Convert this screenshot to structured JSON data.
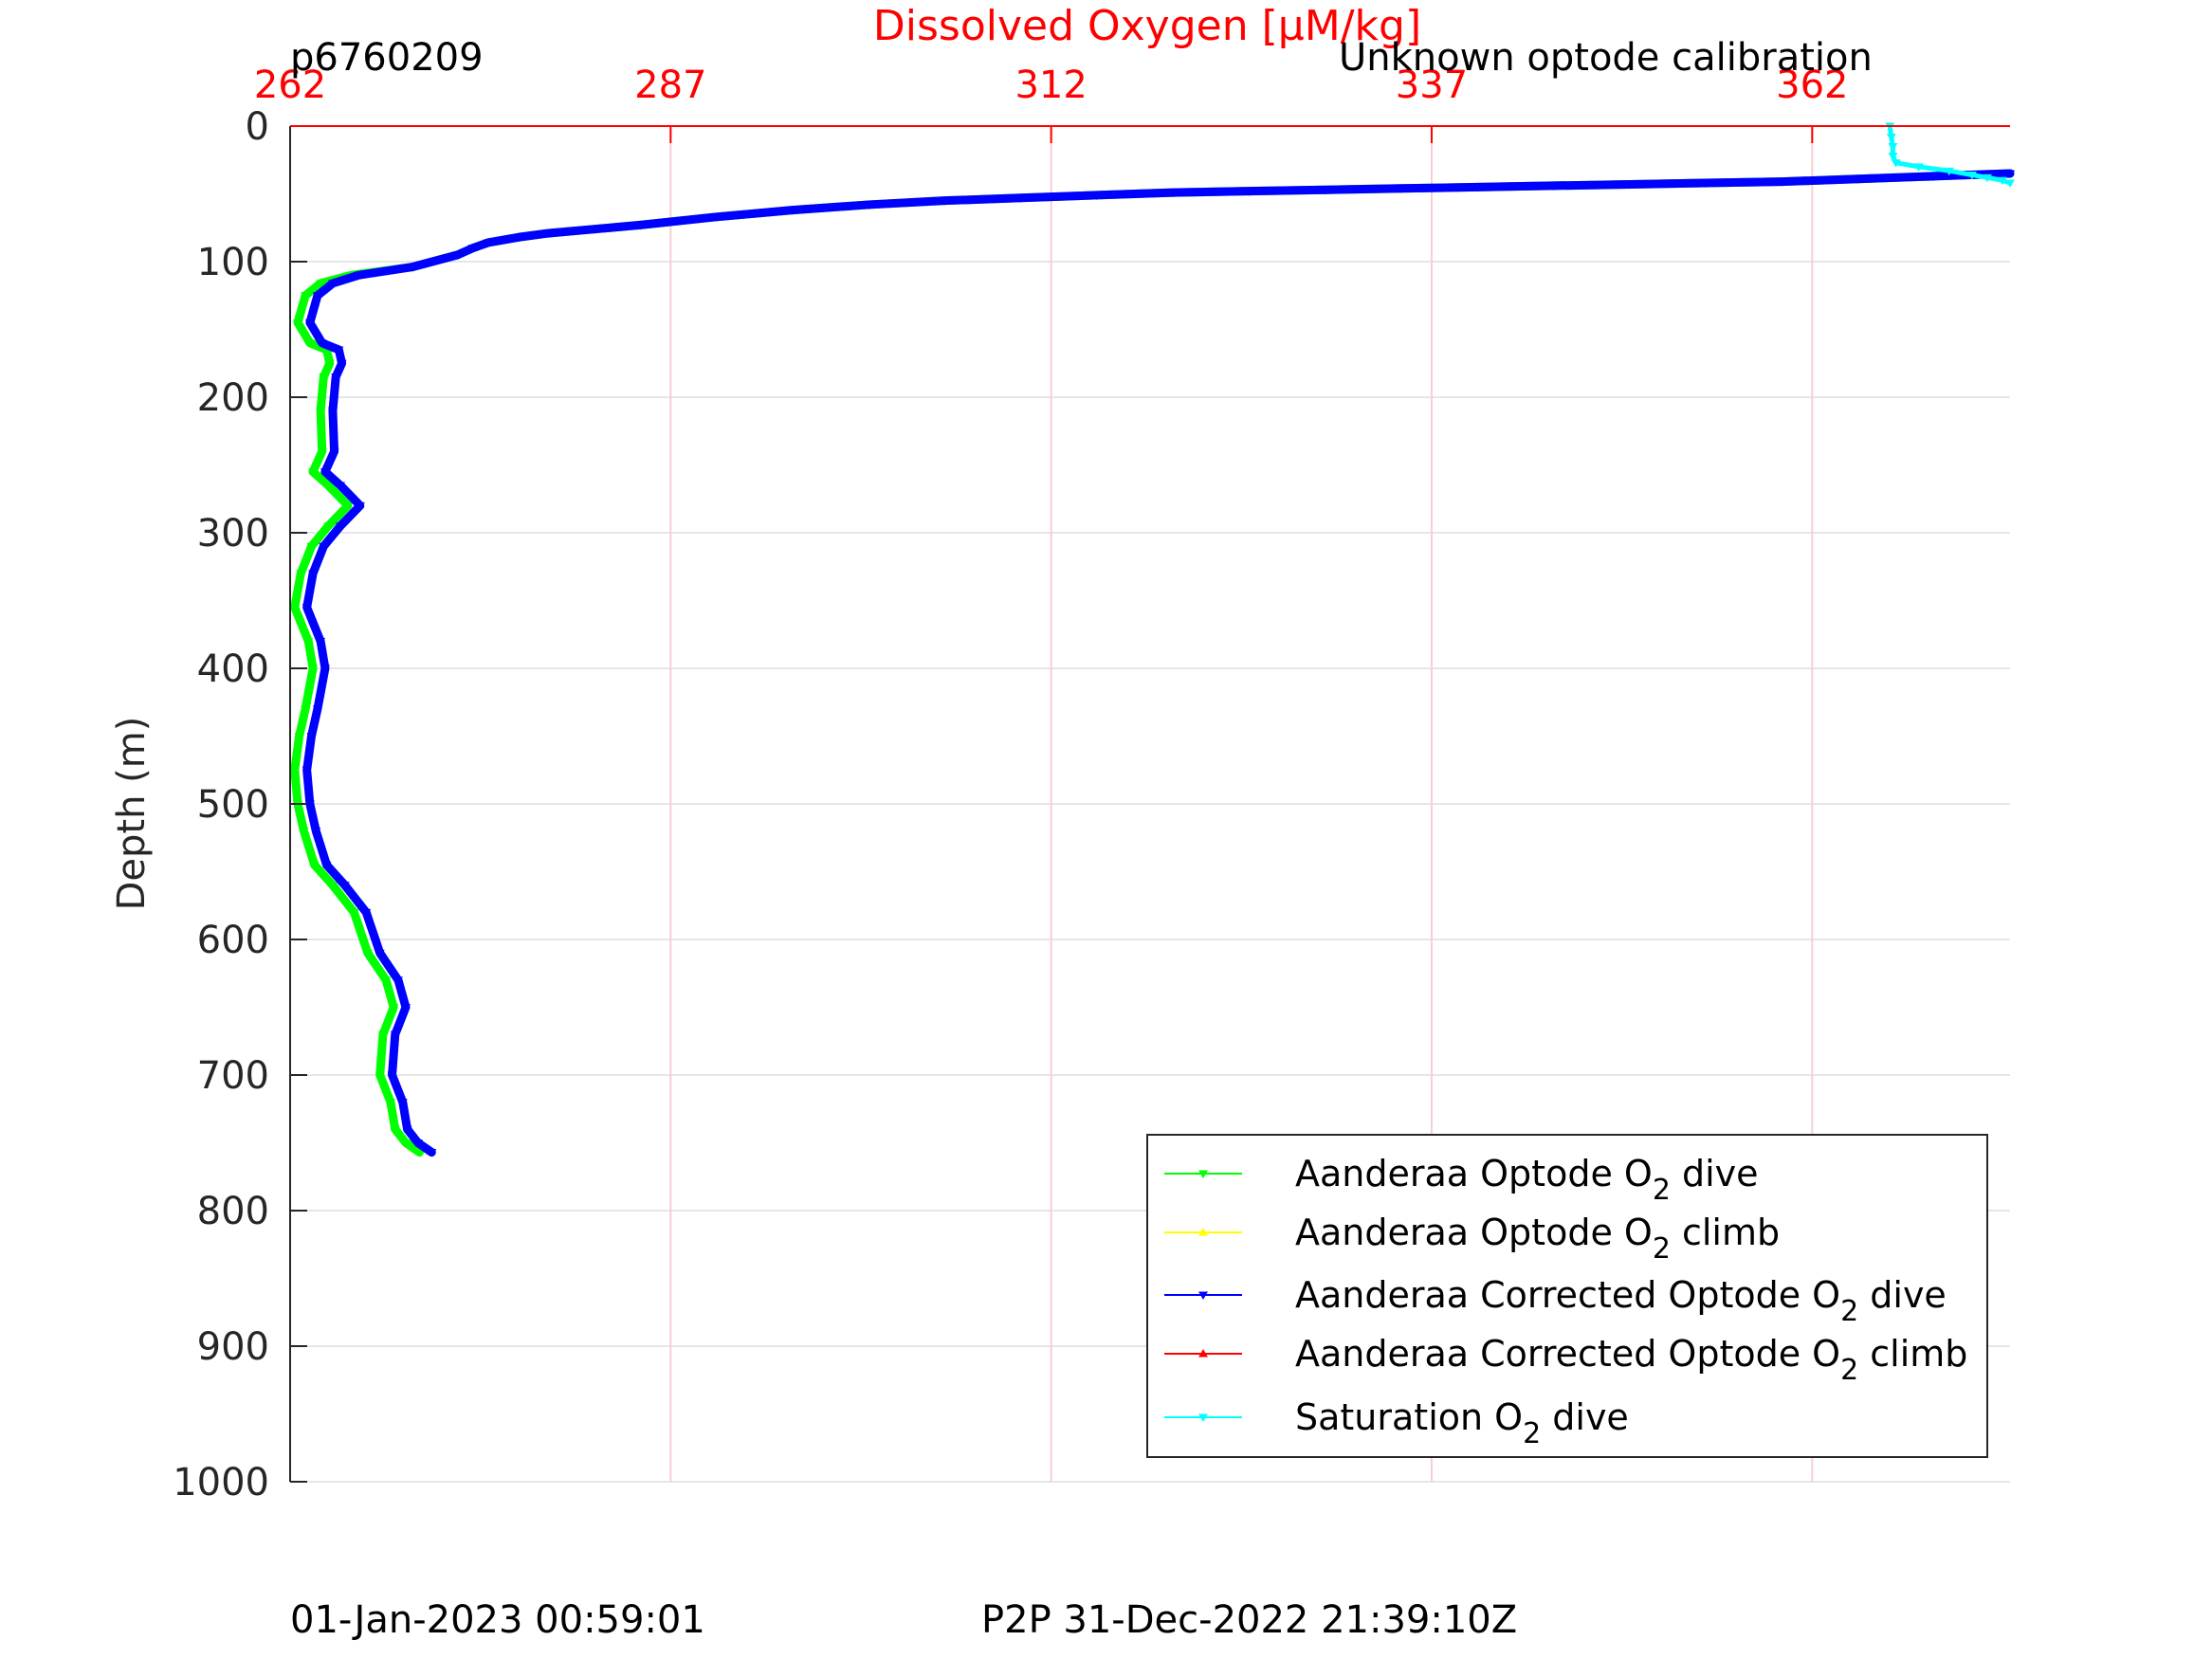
{
  "chart_data": {
    "type": "line",
    "title": "Dissolved Oxygen [μM/kg]",
    "title_color": "#ff0000",
    "top_left_label": "p6760209",
    "top_right_label": "Unknown optode calibration",
    "xlabel": "Dissolved Oxygen [μM/kg]",
    "ylabel": "Depth (m)",
    "x_axis_position": "top",
    "x_ticks": [
      "262",
      "287",
      "312",
      "337",
      "362"
    ],
    "x_tick_values": [
      262,
      287,
      312,
      337,
      362
    ],
    "xlim": [
      262,
      375
    ],
    "y_ticks": [
      "0",
      "100",
      "200",
      "300",
      "400",
      "500",
      "600",
      "700",
      "800",
      "900",
      "1000"
    ],
    "y_tick_values": [
      0,
      100,
      200,
      300,
      400,
      500,
      600,
      700,
      800,
      900,
      1000
    ],
    "ylim": [
      0,
      1000
    ],
    "y_reversed": true,
    "grid": true,
    "legend_position": "bottom-right",
    "footer_left": "01-Jan-2023 00:59:01",
    "footer_center": "P2P 31-Dec-2022 21:39:10Z",
    "series": [
      {
        "name": "Aanderaa Optode O2 dive",
        "label_parts": [
          "Aanderaa Optode O",
          "2",
          " dive"
        ],
        "color": "#00ff00",
        "marker": "triangle-down",
        "x": [
          375,
          370,
          365,
          360,
          355,
          350,
          345,
          340,
          335,
          330,
          325,
          320,
          315,
          310,
          305,
          300,
          295,
          290,
          285,
          282,
          279,
          277,
          275,
          274,
          273,
          270,
          266,
          264,
          263,
          262.5,
          263.3,
          264.4,
          264.6,
          264.2,
          264.0,
          264.1,
          263.5,
          264.5,
          265.8,
          264.5,
          263.4,
          262.7,
          262.3,
          263.2,
          263.5,
          263.0,
          262.6,
          262.3,
          262.5,
          262.9,
          263.6,
          264.8,
          266.2,
          267.1,
          268.3,
          268.8,
          268.1,
          267.9,
          268.6,
          268.9,
          269.6,
          270.5
        ],
        "y": [
          35,
          37,
          39,
          41,
          42,
          43,
          44,
          45,
          46,
          47,
          48,
          49,
          51,
          53,
          55,
          58,
          62,
          67,
          73,
          76,
          79,
          82,
          86,
          90,
          95,
          104,
          110,
          116,
          125,
          145,
          160,
          165,
          175,
          185,
          210,
          240,
          255,
          265,
          280,
          295,
          310,
          330,
          355,
          380,
          400,
          430,
          450,
          475,
          500,
          520,
          545,
          560,
          580,
          610,
          630,
          650,
          670,
          700,
          720,
          740,
          750,
          757
        ]
      },
      {
        "name": "Aanderaa Optode O2 climb",
        "label_parts": [
          "Aanderaa Optode O",
          "2",
          " climb"
        ],
        "color": "#ffff00",
        "marker": "triangle-up",
        "x": [],
        "y": []
      },
      {
        "name": "Aanderaa Corrected Optode O2 dive",
        "label_parts": [
          "Aanderaa Corrected Optode O",
          "2",
          " dive"
        ],
        "color": "#0000ff",
        "marker": "triangle-down",
        "x": [
          375,
          370,
          365,
          360,
          355,
          350,
          345,
          340,
          335,
          330,
          325,
          320,
          315,
          310,
          305,
          300,
          295,
          290,
          285,
          282,
          279,
          277,
          275,
          274,
          273,
          270,
          266.5,
          264.8,
          263.8,
          263.3,
          264.1,
          265.2,
          265.4,
          265.0,
          264.8,
          264.9,
          264.3,
          265.3,
          266.6,
          265.3,
          264.2,
          263.5,
          263.1,
          264.0,
          264.3,
          263.8,
          263.4,
          263.1,
          263.3,
          263.7,
          264.4,
          265.6,
          267.0,
          267.9,
          269.1,
          269.6,
          268.9,
          268.7,
          269.4,
          269.7,
          270.4,
          271.3
        ],
        "y": [
          35,
          37,
          39,
          41,
          42,
          43,
          44,
          45,
          46,
          47,
          48,
          49,
          51,
          53,
          55,
          58,
          62,
          67,
          73,
          76,
          79,
          82,
          86,
          90,
          95,
          104,
          110,
          116,
          125,
          145,
          160,
          165,
          175,
          185,
          210,
          240,
          255,
          265,
          280,
          295,
          310,
          330,
          355,
          380,
          400,
          430,
          450,
          475,
          500,
          520,
          545,
          560,
          580,
          610,
          630,
          650,
          670,
          700,
          720,
          740,
          750,
          757
        ]
      },
      {
        "name": "Aanderaa Corrected Optode O2 climb",
        "label_parts": [
          "Aanderaa Corrected Optode O",
          "2",
          " climb"
        ],
        "color": "#ff0000",
        "marker": "triangle-up",
        "x": [],
        "y": []
      },
      {
        "name": "Saturation O2 dive",
        "label_parts": [
          "Saturation O",
          "2",
          " dive"
        ],
        "color": "#00ffff",
        "marker": "triangle-down",
        "x": [
          367.1,
          367.2,
          367.3,
          367.3,
          367.5,
          369.0,
          371.0,
          372.5,
          373.5,
          374.5,
          375
        ],
        "y": [
          0,
          8,
          15,
          22,
          27,
          30,
          33,
          36,
          38,
          40,
          42
        ]
      }
    ]
  }
}
